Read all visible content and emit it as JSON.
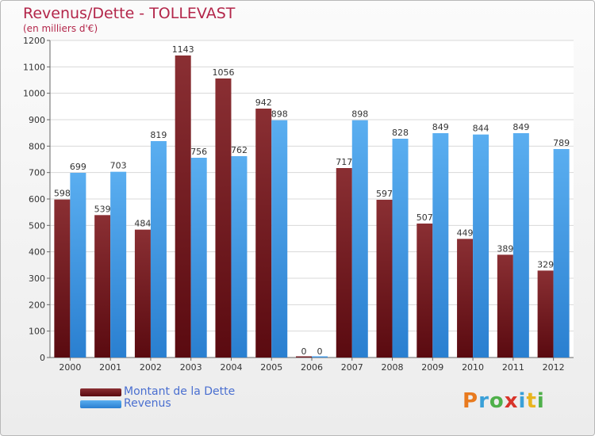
{
  "chart_data": {
    "type": "bar",
    "title": "Revenus/Dette - TOLLEVAST",
    "subtitle": "(en milliers d'€)",
    "categories": [
      "2000",
      "2001",
      "2002",
      "2003",
      "2004",
      "2005",
      "2006",
      "2007",
      "2008",
      "2009",
      "2010",
      "2011",
      "2012"
    ],
    "series": [
      {
        "name": "Montant de la Dette",
        "color": "#7a1e24",
        "values": [
          598,
          539,
          484,
          1143,
          1056,
          942,
          0,
          717,
          597,
          507,
          449,
          389,
          329
        ]
      },
      {
        "name": "Revenus",
        "color": "#3d9ae6",
        "values": [
          699,
          703,
          819,
          756,
          762,
          898,
          0,
          898,
          828,
          849,
          844,
          849,
          789
        ]
      }
    ],
    "ylim": [
      0,
      1200
    ],
    "yticks": [
      0,
      100,
      200,
      300,
      400,
      500,
      600,
      700,
      800,
      900,
      1000,
      1100,
      1200
    ],
    "grid": true,
    "legend_position": "bottom-left"
  },
  "logo": {
    "text": "Proxiti",
    "letters": [
      {
        "ch": "P",
        "color": "#e87a1e"
      },
      {
        "ch": "r",
        "color": "#3aa0d8"
      },
      {
        "ch": "o",
        "color": "#4fb04a"
      },
      {
        "ch": "x",
        "color": "#d8342a"
      },
      {
        "ch": "i",
        "color": "#3aa0d8"
      },
      {
        "ch": "t",
        "color": "#e8b41e"
      },
      {
        "ch": "i",
        "color": "#4fb04a"
      }
    ]
  }
}
